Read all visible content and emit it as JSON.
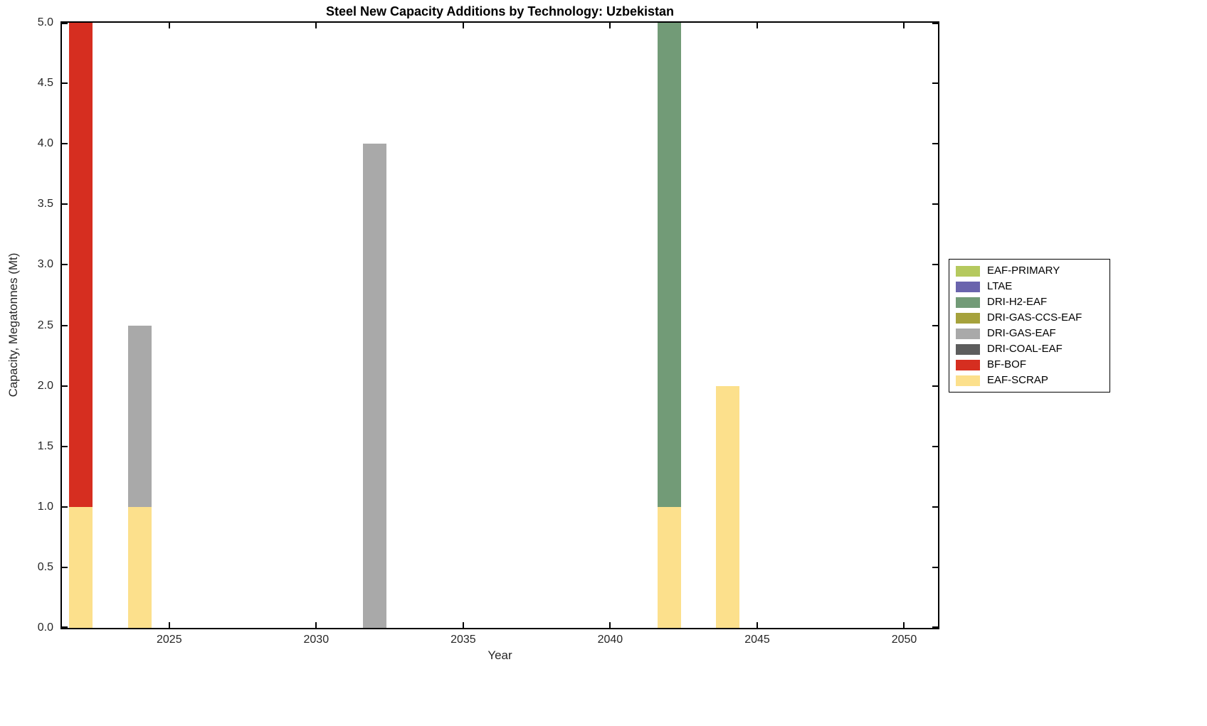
{
  "title": "Steel New Capacity Additions by Technology: Uzbekistan",
  "axes": {
    "xlabel": "Year",
    "ylabel": "Capacity, Megatonnes (Mt)"
  },
  "chart_data": {
    "type": "bar",
    "stacked": true,
    "title": "Steel New Capacity Additions by Technology: Uzbekistan",
    "xlabel": "Year",
    "ylabel": "Capacity, Megatonnes (Mt)",
    "xlim": [
      2021.35,
      2051.15
    ],
    "ylim": [
      0,
      5
    ],
    "bar_width_years": 0.8,
    "grid": false,
    "legend_position": "right-outside",
    "categories": [
      2022,
      2024,
      2032,
      2042,
      2044
    ],
    "series": [
      {
        "name": "EAF-SCRAP",
        "color": "#fce08c",
        "values": [
          1,
          1,
          0,
          1,
          2
        ]
      },
      {
        "name": "BF-BOF",
        "color": "#d62e20",
        "values": [
          4,
          0,
          0,
          0,
          0
        ]
      },
      {
        "name": "DRI-COAL-EAF",
        "color": "#5d5d5d",
        "values": [
          0,
          0,
          0,
          0,
          0
        ]
      },
      {
        "name": "DRI-GAS-EAF",
        "color": "#a9a9a9",
        "values": [
          0,
          1.5,
          4,
          0,
          0
        ]
      },
      {
        "name": "DRI-GAS-CCS-EAF",
        "color": "#a6a23c",
        "values": [
          0,
          0,
          0,
          0,
          0
        ]
      },
      {
        "name": "DRI-H2-EAF",
        "color": "#729b77",
        "values": [
          0,
          0,
          0,
          4,
          0
        ]
      },
      {
        "name": "LTAE",
        "color": "#6a64ad",
        "values": [
          0,
          0,
          0,
          0,
          0
        ]
      },
      {
        "name": "EAF-PRIMARY",
        "color": "#b5c95e",
        "values": [
          0,
          0,
          0,
          0,
          0
        ]
      }
    ],
    "legend_order": [
      "EAF-PRIMARY",
      "LTAE",
      "DRI-H2-EAF",
      "DRI-GAS-CCS-EAF",
      "DRI-GAS-EAF",
      "DRI-COAL-EAF",
      "BF-BOF",
      "EAF-SCRAP"
    ],
    "x_ticks": [
      {
        "value": 2025,
        "label": "2025"
      },
      {
        "value": 2030,
        "label": "2030"
      },
      {
        "value": 2035,
        "label": "2035"
      },
      {
        "value": 2040,
        "label": "2040"
      },
      {
        "value": 2045,
        "label": "2045"
      },
      {
        "value": 2050,
        "label": "2050"
      }
    ],
    "y_ticks": [
      {
        "value": 0,
        "label": "0.0"
      },
      {
        "value": 0.5,
        "label": "0.5"
      },
      {
        "value": 1,
        "label": "1.0"
      },
      {
        "value": 1.5,
        "label": "1.5"
      },
      {
        "value": 2,
        "label": "2.0"
      },
      {
        "value": 2.5,
        "label": "2.5"
      },
      {
        "value": 3,
        "label": "3.0"
      },
      {
        "value": 3.5,
        "label": "3.5"
      },
      {
        "value": 4,
        "label": "4.0"
      },
      {
        "value": 4.5,
        "label": "4.5"
      },
      {
        "value": 5,
        "label": "5.0"
      }
    ]
  }
}
